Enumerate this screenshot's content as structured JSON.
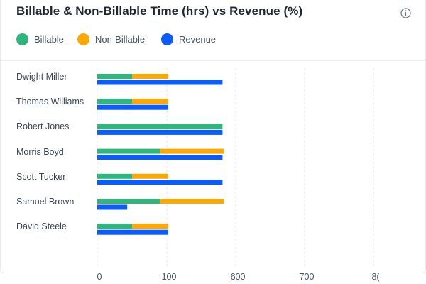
{
  "chart_data": {
    "type": "bar",
    "title": "Billable & Non-Billable Time (hrs) vs Revenue (%)",
    "categories": [
      "Dwight Miller",
      "Thomas Williams",
      "Robert Jones",
      "Morris Boyd",
      "Scott Tucker",
      "Samuel Brown",
      "David Steele"
    ],
    "series": [
      {
        "name": "Billable",
        "color": "#2fb67c",
        "values": [
          50,
          50,
          180,
          90,
          50,
          90,
          50
        ]
      },
      {
        "name": "Non-Billable",
        "color": "#ffa800",
        "values": [
          52,
          52,
          0,
          92,
          52,
          92,
          52
        ]
      },
      {
        "name": "Revenue",
        "color": "#0b5cff",
        "values": [
          180,
          102,
          180,
          180,
          180,
          43,
          102
        ]
      }
    ],
    "stacked_series": [
      "Billable",
      "Non-Billable"
    ],
    "x_ticks": [
      "0",
      "100",
      "600",
      "700",
      "8("
    ],
    "xlim": [
      0,
      400
    ],
    "grid": true,
    "legend_position": "top-left"
  },
  "icons": {
    "info": "info-icon"
  }
}
